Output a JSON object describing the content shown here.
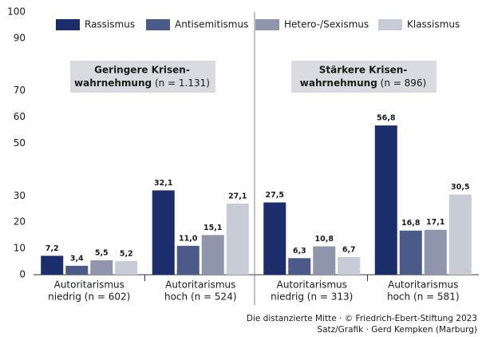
{
  "chart_data": {
    "type": "bar",
    "categories": [
      [
        "Autoritarismus",
        "niedrig (n = 602)"
      ],
      [
        "Autoritarismus",
        "hoch (n = 524)"
      ],
      [
        "Autoritarismus",
        "niedrig (n = 313)"
      ],
      [
        "Autoritarismus",
        "hoch (n = 581)"
      ]
    ],
    "series": [
      {
        "name": "Rassismus",
        "color": "#1b2d6b",
        "values": [
          7.2,
          32.1,
          27.5,
          56.8
        ],
        "value_labels": [
          "7,2",
          "32,1",
          "27,5",
          "56,8"
        ]
      },
      {
        "name": "Antisemitismus",
        "color": "#4b5a89",
        "values": [
          3.4,
          11.0,
          6.3,
          16.8
        ],
        "value_labels": [
          "3,4",
          "11,0",
          "6,3",
          "16,8"
        ]
      },
      {
        "name": "Hetero-/Sexismus",
        "color": "#8f96ab",
        "values": [
          5.5,
          15.1,
          10.8,
          17.1
        ],
        "value_labels": [
          "5,5",
          "15,1",
          "10,8",
          "17,1"
        ]
      },
      {
        "name": "Klassismus",
        "color": "#c8ccd6",
        "values": [
          5.2,
          27.1,
          6.7,
          30.5
        ],
        "value_labels": [
          "5,2",
          "27,1",
          "6,7",
          "30,5"
        ]
      }
    ],
    "ylim": [
      0,
      100
    ],
    "yticks": [
      0,
      10,
      20,
      30,
      50,
      60,
      70,
      90,
      100
    ],
    "annotations": [
      {
        "lines": [
          "Geringere Krisen-",
          "wahrnehmung"
        ],
        "note": "(n = 1.131)"
      },
      {
        "lines": [
          "Stärkere Krisen-",
          "wahrnehmung"
        ],
        "note": "(n = 896)"
      }
    ],
    "source": [
      "Die distanzierte Mitte · © Friedrich-Ebert-Stiftung 2023",
      "Satz/Grafik · Gerd Kempken (Marburg)"
    ]
  }
}
